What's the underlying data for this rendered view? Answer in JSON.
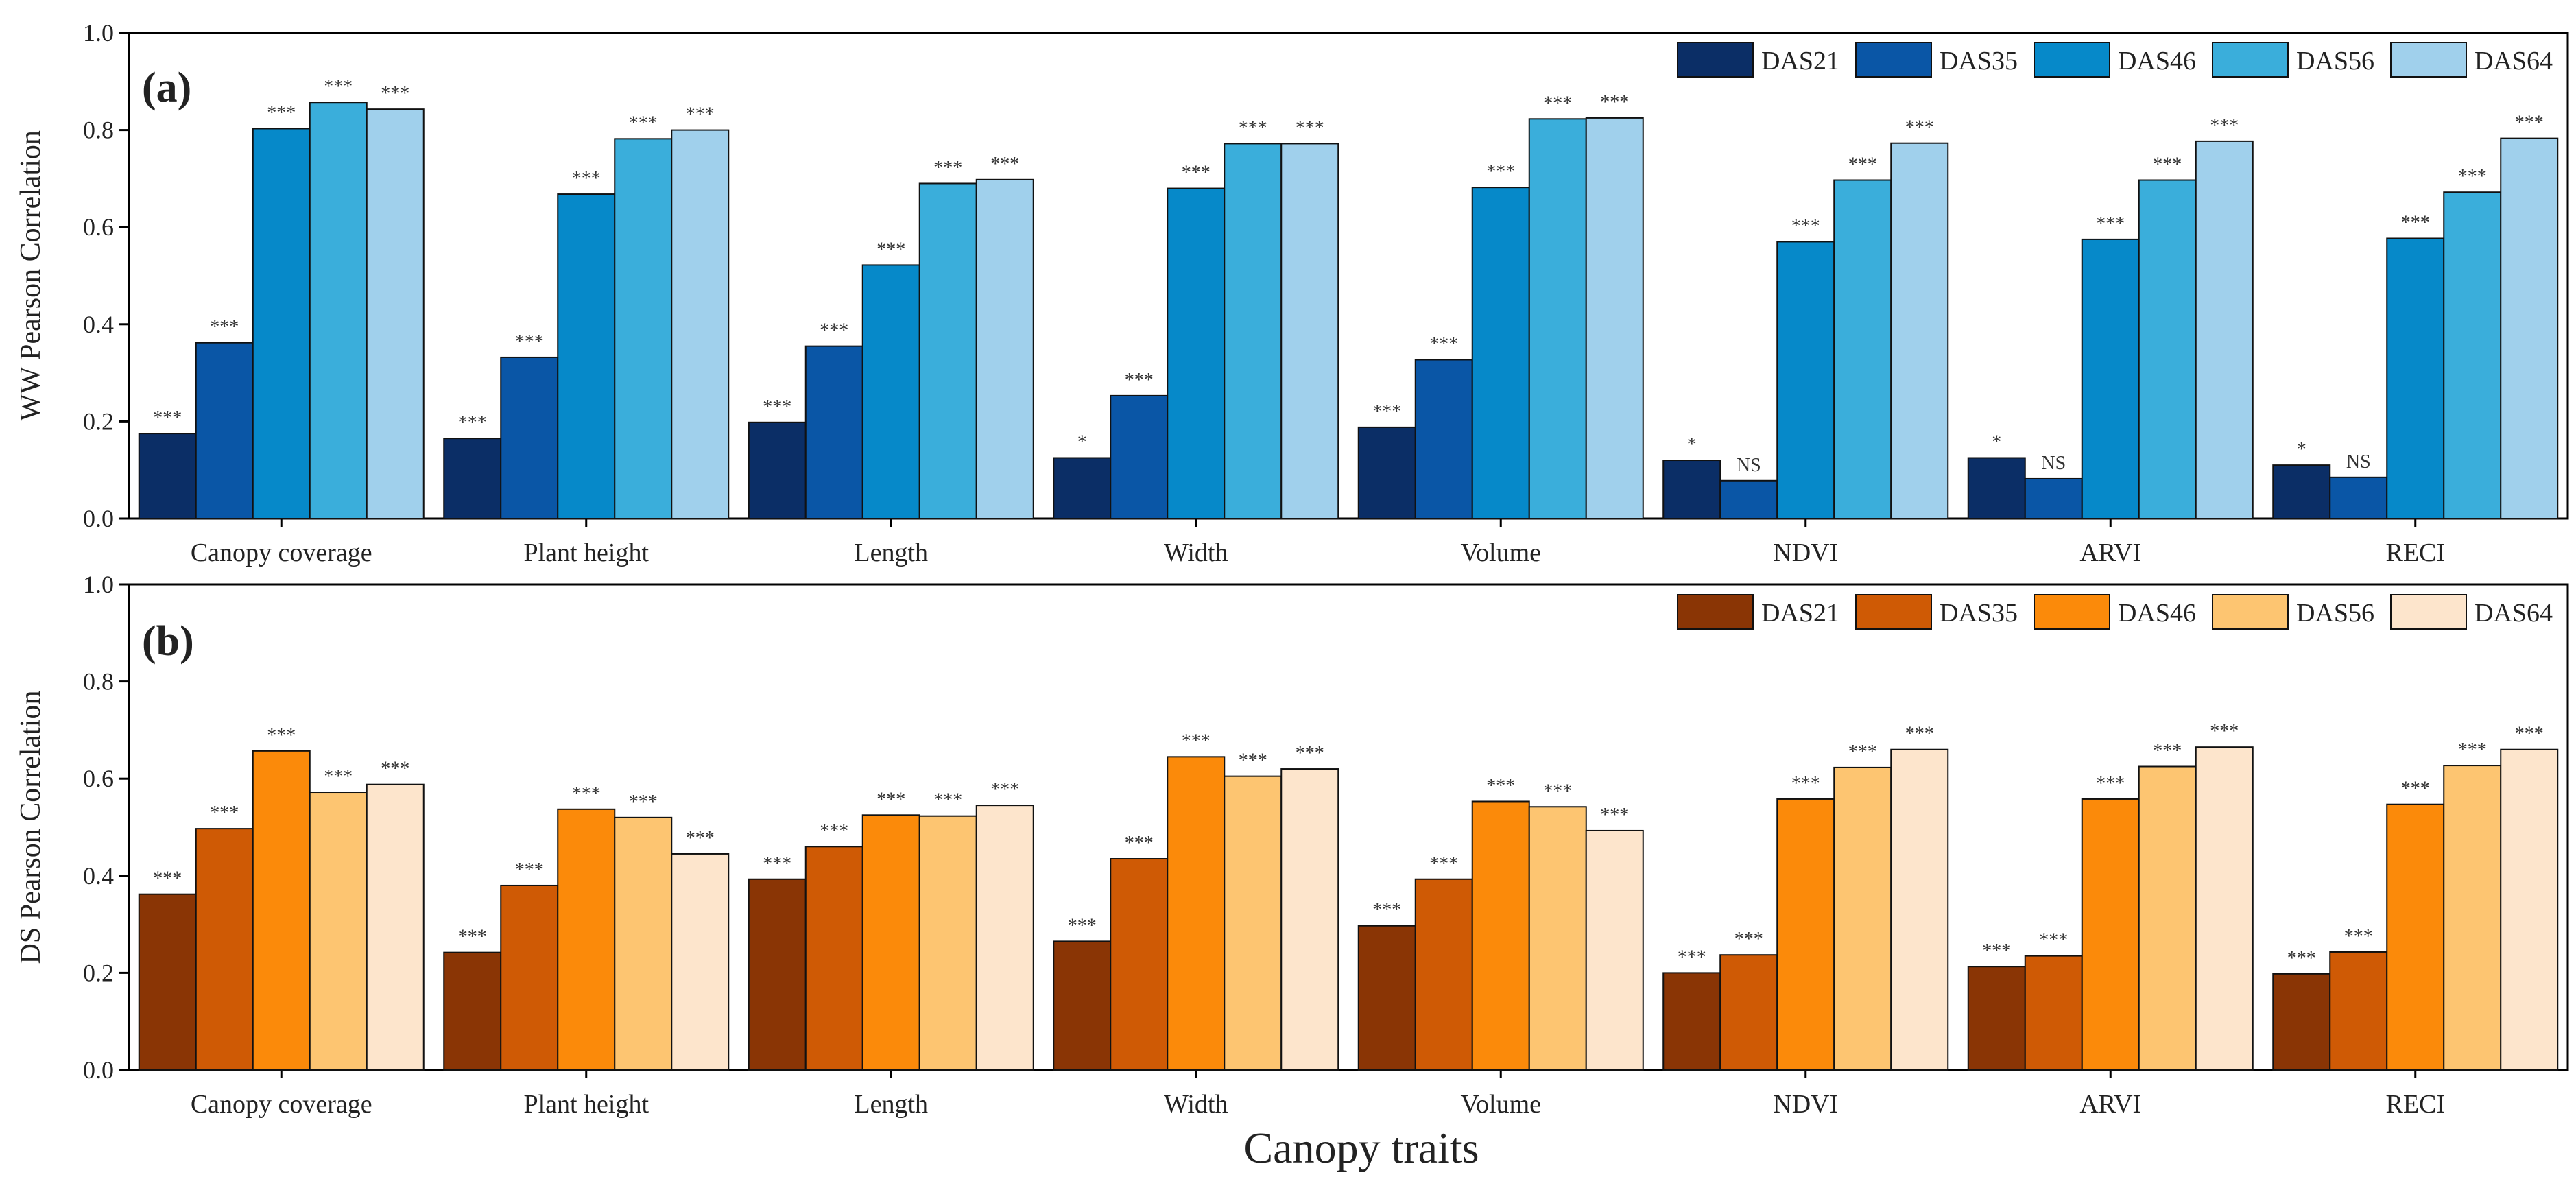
{
  "xlabel": "Canopy traits",
  "chart_data": [
    {
      "type": "bar",
      "panel_label": "(a)",
      "ylabel": "WW Pearson Correlation",
      "ylim": [
        0,
        1.0
      ],
      "yticks": [
        "0.0",
        "0.2",
        "0.4",
        "0.6",
        "0.8",
        "1.0"
      ],
      "categories": [
        "Canopy coverage",
        "Plant height",
        "Length",
        "Width",
        "Volume",
        "NDVI",
        "ARVI",
        "RECI"
      ],
      "legend_position": "top-right",
      "series": [
        {
          "name": "DAS21",
          "color": "#0b2e66",
          "values": [
            0.175,
            0.165,
            0.198,
            0.125,
            0.188,
            0.12,
            0.125,
            0.11
          ],
          "sig": [
            "***",
            "***",
            "***",
            "*",
            "***",
            "*",
            "*",
            "*"
          ]
        },
        {
          "name": "DAS35",
          "color": "#0a56a6",
          "values": [
            0.362,
            0.332,
            0.355,
            0.253,
            0.327,
            0.078,
            0.082,
            0.085
          ],
          "sig": [
            "***",
            "***",
            "***",
            "***",
            "***",
            "NS",
            "NS",
            "NS"
          ]
        },
        {
          "name": "DAS46",
          "color": "#0689c9",
          "values": [
            0.803,
            0.668,
            0.522,
            0.68,
            0.682,
            0.57,
            0.575,
            0.577
          ],
          "sig": [
            "***",
            "***",
            "***",
            "***",
            "***",
            "***",
            "***",
            "***"
          ]
        },
        {
          "name": "DAS56",
          "color": "#3aaedb",
          "values": [
            0.857,
            0.782,
            0.69,
            0.772,
            0.823,
            0.697,
            0.697,
            0.672
          ],
          "sig": [
            "***",
            "***",
            "***",
            "***",
            "***",
            "***",
            "***",
            "***"
          ]
        },
        {
          "name": "DAS64",
          "color": "#a0d0ec",
          "values": [
            0.843,
            0.8,
            0.698,
            0.772,
            0.825,
            0.773,
            0.777,
            0.783
          ],
          "sig": [
            "***",
            "***",
            "***",
            "***",
            "***",
            "***",
            "***",
            "***"
          ]
        }
      ]
    },
    {
      "type": "bar",
      "panel_label": "(b)",
      "ylabel": "DS Pearson Correlation",
      "ylim": [
        0,
        1.0
      ],
      "yticks": [
        "0.0",
        "0.2",
        "0.4",
        "0.6",
        "0.8",
        "1.0"
      ],
      "categories": [
        "Canopy coverage",
        "Plant height",
        "Length",
        "Width",
        "Volume",
        "NDVI",
        "ARVI",
        "RECI"
      ],
      "legend_position": "top-right",
      "series": [
        {
          "name": "DAS21",
          "color": "#8a3505",
          "values": [
            0.362,
            0.242,
            0.393,
            0.265,
            0.297,
            0.2,
            0.213,
            0.198
          ],
          "sig": [
            "***",
            "***",
            "***",
            "***",
            "***",
            "***",
            "***",
            "***"
          ]
        },
        {
          "name": "DAS35",
          "color": "#cf5a05",
          "values": [
            0.497,
            0.38,
            0.46,
            0.435,
            0.393,
            0.237,
            0.235,
            0.243
          ],
          "sig": [
            "***",
            "***",
            "***",
            "***",
            "***",
            "***",
            "***",
            "***"
          ]
        },
        {
          "name": "DAS46",
          "color": "#fb8a0a",
          "values": [
            0.657,
            0.537,
            0.525,
            0.645,
            0.553,
            0.558,
            0.558,
            0.547
          ],
          "sig": [
            "***",
            "***",
            "***",
            "***",
            "***",
            "***",
            "***",
            "***"
          ]
        },
        {
          "name": "DAS56",
          "color": "#fdc571",
          "values": [
            0.572,
            0.52,
            0.523,
            0.605,
            0.542,
            0.623,
            0.625,
            0.627
          ],
          "sig": [
            "***",
            "***",
            "***",
            "***",
            "***",
            "***",
            "***",
            "***"
          ]
        },
        {
          "name": "DAS64",
          "color": "#fde5cc",
          "values": [
            0.588,
            0.445,
            0.545,
            0.62,
            0.493,
            0.66,
            0.665,
            0.66
          ],
          "sig": [
            "***",
            "***",
            "***",
            "***",
            "***",
            "***",
            "***",
            "***"
          ]
        }
      ]
    }
  ]
}
